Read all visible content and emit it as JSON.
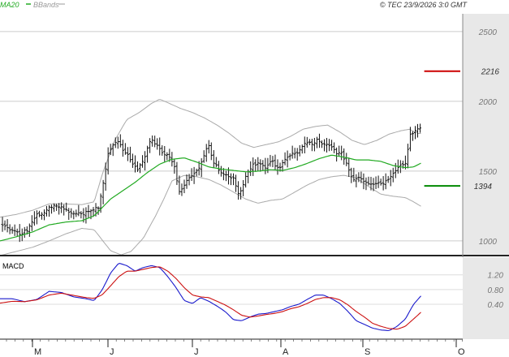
{
  "header": {
    "indicator_labels": [
      "MA20",
      "BBands"
    ],
    "indicator_colors": [
      "#22aa22",
      "#999999"
    ],
    "copyright": "© TEC 23/9/2026 3:0 GMT"
  },
  "chart_data": [
    {
      "type": "ohlc",
      "panel": "price",
      "ylim": [
        895,
        2627
      ],
      "y_ticks": [
        1000,
        1500,
        2000,
        2500
      ],
      "y_tick_labels": [
        "1000",
        "1500",
        "2000",
        "2500"
      ],
      "grid": true,
      "x_domain": [
        0,
        565
      ],
      "resistance": {
        "value": 2216,
        "label": "2216",
        "x_range": [
          518,
          562
        ],
        "color": "#cc0000"
      },
      "support": {
        "value": 1394,
        "label": "1394",
        "x_range": [
          518,
          562
        ],
        "color": "#008800"
      },
      "ma20_anchors": [
        [
          0,
          1000
        ],
        [
          20,
          1030
        ],
        [
          40,
          1065
        ],
        [
          60,
          1115
        ],
        [
          80,
          1135
        ],
        [
          100,
          1145
        ],
        [
          115,
          1180
        ],
        [
          125,
          1240
        ],
        [
          135,
          1300
        ],
        [
          150,
          1360
        ],
        [
          165,
          1420
        ],
        [
          180,
          1490
        ],
        [
          195,
          1550
        ],
        [
          210,
          1585
        ],
        [
          225,
          1595
        ],
        [
          240,
          1565
        ],
        [
          255,
          1530
        ],
        [
          270,
          1515
        ],
        [
          285,
          1505
        ],
        [
          300,
          1495
        ],
        [
          315,
          1500
        ],
        [
          330,
          1510
        ],
        [
          345,
          1505
        ],
        [
          360,
          1525
        ],
        [
          375,
          1555
        ],
        [
          390,
          1590
        ],
        [
          405,
          1615
        ],
        [
          420,
          1600
        ],
        [
          435,
          1580
        ],
        [
          450,
          1580
        ],
        [
          465,
          1570
        ],
        [
          480,
          1540
        ],
        [
          495,
          1525
        ],
        [
          505,
          1530
        ],
        [
          515,
          1560
        ]
      ],
      "bb_upper_anchors": [
        [
          0,
          1170
        ],
        [
          20,
          1190
        ],
        [
          40,
          1220
        ],
        [
          60,
          1265
        ],
        [
          80,
          1265
        ],
        [
          100,
          1260
        ],
        [
          115,
          1280
        ],
        [
          125,
          1480
        ],
        [
          140,
          1720
        ],
        [
          155,
          1870
        ],
        [
          170,
          1920
        ],
        [
          185,
          1985
        ],
        [
          195,
          2015
        ],
        [
          205,
          1990
        ],
        [
          220,
          1950
        ],
        [
          235,
          1920
        ],
        [
          250,
          1880
        ],
        [
          265,
          1830
        ],
        [
          280,
          1770
        ],
        [
          295,
          1700
        ],
        [
          310,
          1670
        ],
        [
          325,
          1690
        ],
        [
          340,
          1710
        ],
        [
          355,
          1750
        ],
        [
          370,
          1800
        ],
        [
          385,
          1820
        ],
        [
          400,
          1830
        ],
        [
          415,
          1780
        ],
        [
          430,
          1720
        ],
        [
          445,
          1690
        ],
        [
          460,
          1720
        ],
        [
          475,
          1765
        ],
        [
          490,
          1790
        ],
        [
          500,
          1800
        ],
        [
          510,
          1770
        ]
      ],
      "bb_lower_anchors": [
        [
          0,
          895
        ],
        [
          20,
          925
        ],
        [
          40,
          955
        ],
        [
          60,
          1000
        ],
        [
          80,
          1050
        ],
        [
          100,
          1090
        ],
        [
          115,
          1080
        ],
        [
          125,
          1005
        ],
        [
          135,
          930
        ],
        [
          148,
          900
        ],
        [
          160,
          925
        ],
        [
          175,
          1020
        ],
        [
          190,
          1180
        ],
        [
          200,
          1300
        ],
        [
          210,
          1430
        ],
        [
          225,
          1470
        ],
        [
          240,
          1460
        ],
        [
          255,
          1440
        ],
        [
          270,
          1400
        ],
        [
          285,
          1350
        ],
        [
          300,
          1300
        ],
        [
          315,
          1270
        ],
        [
          330,
          1290
        ],
        [
          345,
          1300
        ],
        [
          360,
          1350
        ],
        [
          375,
          1400
        ],
        [
          390,
          1440
        ],
        [
          405,
          1460
        ],
        [
          420,
          1470
        ],
        [
          435,
          1450
        ],
        [
          450,
          1390
        ],
        [
          465,
          1335
        ],
        [
          480,
          1320
        ],
        [
          495,
          1310
        ],
        [
          505,
          1280
        ],
        [
          515,
          1245
        ]
      ],
      "close_anchors": [
        [
          4,
          1110
        ],
        [
          14,
          1080
        ],
        [
          24,
          1055
        ],
        [
          34,
          1075
        ],
        [
          44,
          1185
        ],
        [
          54,
          1205
        ],
        [
          60,
          1250
        ],
        [
          70,
          1255
        ],
        [
          80,
          1230
        ],
        [
          90,
          1190
        ],
        [
          100,
          1195
        ],
        [
          110,
          1210
        ],
        [
          120,
          1240
        ],
        [
          126,
          1420
        ],
        [
          132,
          1620
        ],
        [
          138,
          1680
        ],
        [
          144,
          1720
        ],
        [
          150,
          1640
        ],
        [
          156,
          1610
        ],
        [
          162,
          1560
        ],
        [
          168,
          1510
        ],
        [
          176,
          1590
        ],
        [
          184,
          1720
        ],
        [
          190,
          1700
        ],
        [
          196,
          1650
        ],
        [
          204,
          1610
        ],
        [
          212,
          1560
        ],
        [
          218,
          1350
        ],
        [
          224,
          1390
        ],
        [
          232,
          1460
        ],
        [
          240,
          1500
        ],
        [
          246,
          1560
        ],
        [
          254,
          1690
        ],
        [
          262,
          1550
        ],
        [
          270,
          1490
        ],
        [
          278,
          1470
        ],
        [
          286,
          1440
        ],
        [
          292,
          1320
        ],
        [
          300,
          1470
        ],
        [
          308,
          1540
        ],
        [
          316,
          1550
        ],
        [
          324,
          1520
        ],
        [
          332,
          1570
        ],
        [
          340,
          1510
        ],
        [
          348,
          1590
        ],
        [
          356,
          1620
        ],
        [
          364,
          1640
        ],
        [
          372,
          1690
        ],
        [
          380,
          1700
        ],
        [
          388,
          1720
        ],
        [
          396,
          1690
        ],
        [
          404,
          1680
        ],
        [
          410,
          1630
        ],
        [
          416,
          1640
        ],
        [
          424,
          1540
        ],
        [
          430,
          1440
        ],
        [
          436,
          1460
        ],
        [
          444,
          1420
        ],
        [
          452,
          1400
        ],
        [
          460,
          1420
        ],
        [
          468,
          1410
        ],
        [
          476,
          1450
        ],
        [
          484,
          1510
        ],
        [
          490,
          1540
        ],
        [
          496,
          1560
        ],
        [
          500,
          1760
        ],
        [
          506,
          1780
        ],
        [
          512,
          1800
        ]
      ]
    },
    {
      "type": "line",
      "panel": "macd",
      "title": "MACD",
      "ylim": [
        -0.55,
        1.68
      ],
      "y_ticks": [
        0.4,
        0.8,
        1.2
      ],
      "y_tick_labels": [
        "0.40",
        "0.80",
        "1.20"
      ],
      "series": [
        {
          "role": "macd",
          "color": "#1a1acc",
          "anchors": [
            [
              0,
              0.55
            ],
            [
              15,
              0.55
            ],
            [
              30,
              0.47
            ],
            [
              45,
              0.53
            ],
            [
              60,
              0.75
            ],
            [
              75,
              0.72
            ],
            [
              90,
              0.6
            ],
            [
              105,
              0.55
            ],
            [
              115,
              0.5
            ],
            [
              125,
              0.8
            ],
            [
              135,
              1.25
            ],
            [
              145,
              1.52
            ],
            [
              155,
              1.45
            ],
            [
              165,
              1.3
            ],
            [
              175,
              1.4
            ],
            [
              185,
              1.45
            ],
            [
              195,
              1.4
            ],
            [
              205,
              1.15
            ],
            [
              215,
              0.85
            ],
            [
              225,
              0.5
            ],
            [
              235,
              0.42
            ],
            [
              245,
              0.58
            ],
            [
              255,
              0.48
            ],
            [
              265,
              0.35
            ],
            [
              275,
              0.2
            ],
            [
              285,
              -0.02
            ],
            [
              295,
              -0.05
            ],
            [
              305,
              0.05
            ],
            [
              315,
              0.13
            ],
            [
              325,
              0.15
            ],
            [
              335,
              0.2
            ],
            [
              345,
              0.25
            ],
            [
              355,
              0.34
            ],
            [
              365,
              0.4
            ],
            [
              375,
              0.53
            ],
            [
              385,
              0.65
            ],
            [
              395,
              0.65
            ],
            [
              405,
              0.55
            ],
            [
              415,
              0.42
            ],
            [
              425,
              0.2
            ],
            [
              435,
              -0.05
            ],
            [
              445,
              -0.15
            ],
            [
              455,
              -0.25
            ],
            [
              465,
              -0.3
            ],
            [
              475,
              -0.32
            ],
            [
              485,
              -0.2
            ],
            [
              495,
              0.0
            ],
            [
              505,
              0.4
            ],
            [
              515,
              0.65
            ]
          ]
        },
        {
          "role": "signal",
          "color": "#cc1111",
          "anchors": [
            [
              0,
              0.43
            ],
            [
              15,
              0.48
            ],
            [
              30,
              0.47
            ],
            [
              45,
              0.52
            ],
            [
              60,
              0.65
            ],
            [
              75,
              0.7
            ],
            [
              90,
              0.64
            ],
            [
              105,
              0.58
            ],
            [
              115,
              0.56
            ],
            [
              125,
              0.66
            ],
            [
              135,
              0.9
            ],
            [
              145,
              1.15
            ],
            [
              155,
              1.3
            ],
            [
              165,
              1.3
            ],
            [
              175,
              1.35
            ],
            [
              185,
              1.4
            ],
            [
              195,
              1.42
            ],
            [
              205,
              1.3
            ],
            [
              215,
              1.1
            ],
            [
              225,
              0.85
            ],
            [
              235,
              0.65
            ],
            [
              245,
              0.6
            ],
            [
              255,
              0.58
            ],
            [
              265,
              0.48
            ],
            [
              275,
              0.38
            ],
            [
              285,
              0.25
            ],
            [
              295,
              0.1
            ],
            [
              305,
              0.05
            ],
            [
              315,
              0.08
            ],
            [
              325,
              0.12
            ],
            [
              335,
              0.15
            ],
            [
              345,
              0.2
            ],
            [
              355,
              0.28
            ],
            [
              365,
              0.33
            ],
            [
              375,
              0.42
            ],
            [
              385,
              0.53
            ],
            [
              395,
              0.58
            ],
            [
              405,
              0.58
            ],
            [
              415,
              0.52
            ],
            [
              425,
              0.38
            ],
            [
              435,
              0.2
            ],
            [
              445,
              0.05
            ],
            [
              455,
              -0.12
            ],
            [
              465,
              -0.2
            ],
            [
              475,
              -0.26
            ],
            [
              485,
              -0.28
            ],
            [
              495,
              -0.2
            ],
            [
              505,
              0.0
            ],
            [
              515,
              0.2
            ]
          ]
        }
      ]
    }
  ],
  "x_axis": {
    "labels": [
      "M",
      "J",
      "J",
      "A",
      "S",
      "O"
    ],
    "positions": [
      40,
      133,
      237,
      346,
      447,
      562
    ]
  }
}
